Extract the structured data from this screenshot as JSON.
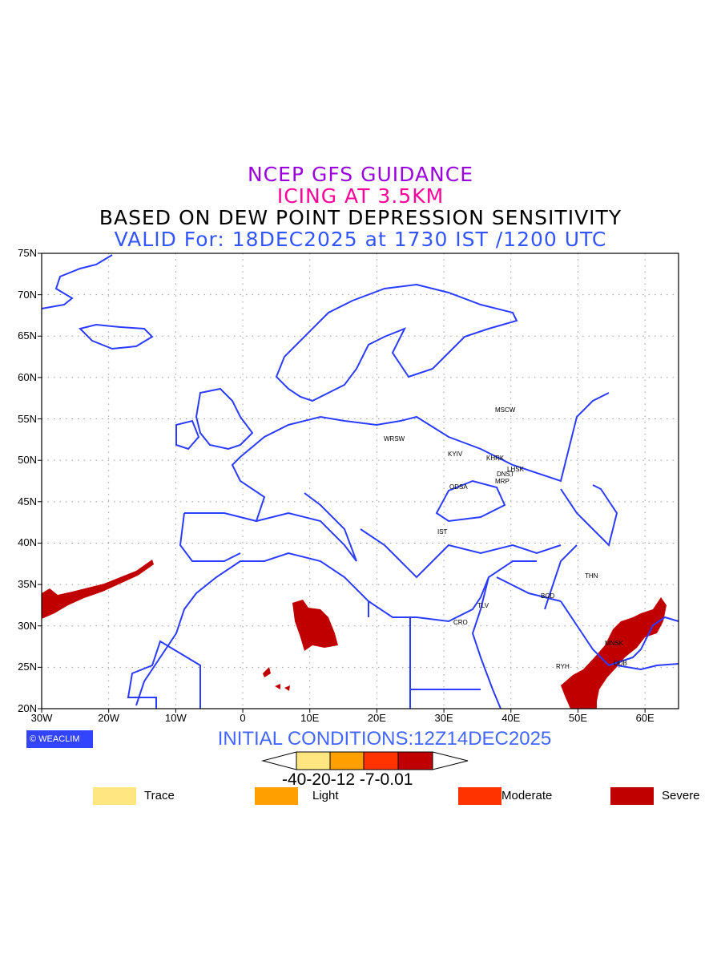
{
  "titles": {
    "line1": "NCEP GFS GUIDANCE",
    "line2": "ICING AT 3.5KM",
    "line3": "BASED ON DEW POINT DEPRESSION SENSITIVITY",
    "line4": "VALID For: 18DEC2025 at 1730 IST /1200 UTC"
  },
  "colors": {
    "line1": "#9900dd",
    "line2": "#ff0099",
    "line3": "#000000",
    "line4": "#3355ff",
    "coast": "#2b3cff",
    "trace": "#ffe680",
    "light": "#ffa000",
    "moderate": "#ff3300",
    "severe": "#c00000"
  },
  "axes": {
    "lon_labels": [
      "30W",
      "20W",
      "10W",
      "0",
      "10E",
      "20E",
      "30E",
      "40E",
      "50E",
      "60E"
    ],
    "lat_labels": [
      "75N",
      "70N",
      "65N",
      "60N",
      "55N",
      "50N",
      "45N",
      "40N",
      "35N",
      "30N",
      "25N",
      "20N"
    ]
  },
  "cities": [
    "MSCW",
    "WRSW",
    "KYIV",
    "KHRK",
    "LHSK",
    "DNST",
    "MRP",
    "ODSA",
    "IST",
    "THN",
    "BGD",
    "TLV",
    "CRO",
    "MNSK",
    "DUB",
    "RYH"
  ],
  "logo": "© WEACLIM",
  "initial_conditions": "INITIAL CONDITIONS:12Z14DEC2025",
  "colorbar": {
    "labels": "-40-20-12 -7-0.01"
  },
  "legend": [
    {
      "label": "Trace"
    },
    {
      "label": "Light"
    },
    {
      "label": "Moderate"
    },
    {
      "label": "Severe"
    }
  ]
}
